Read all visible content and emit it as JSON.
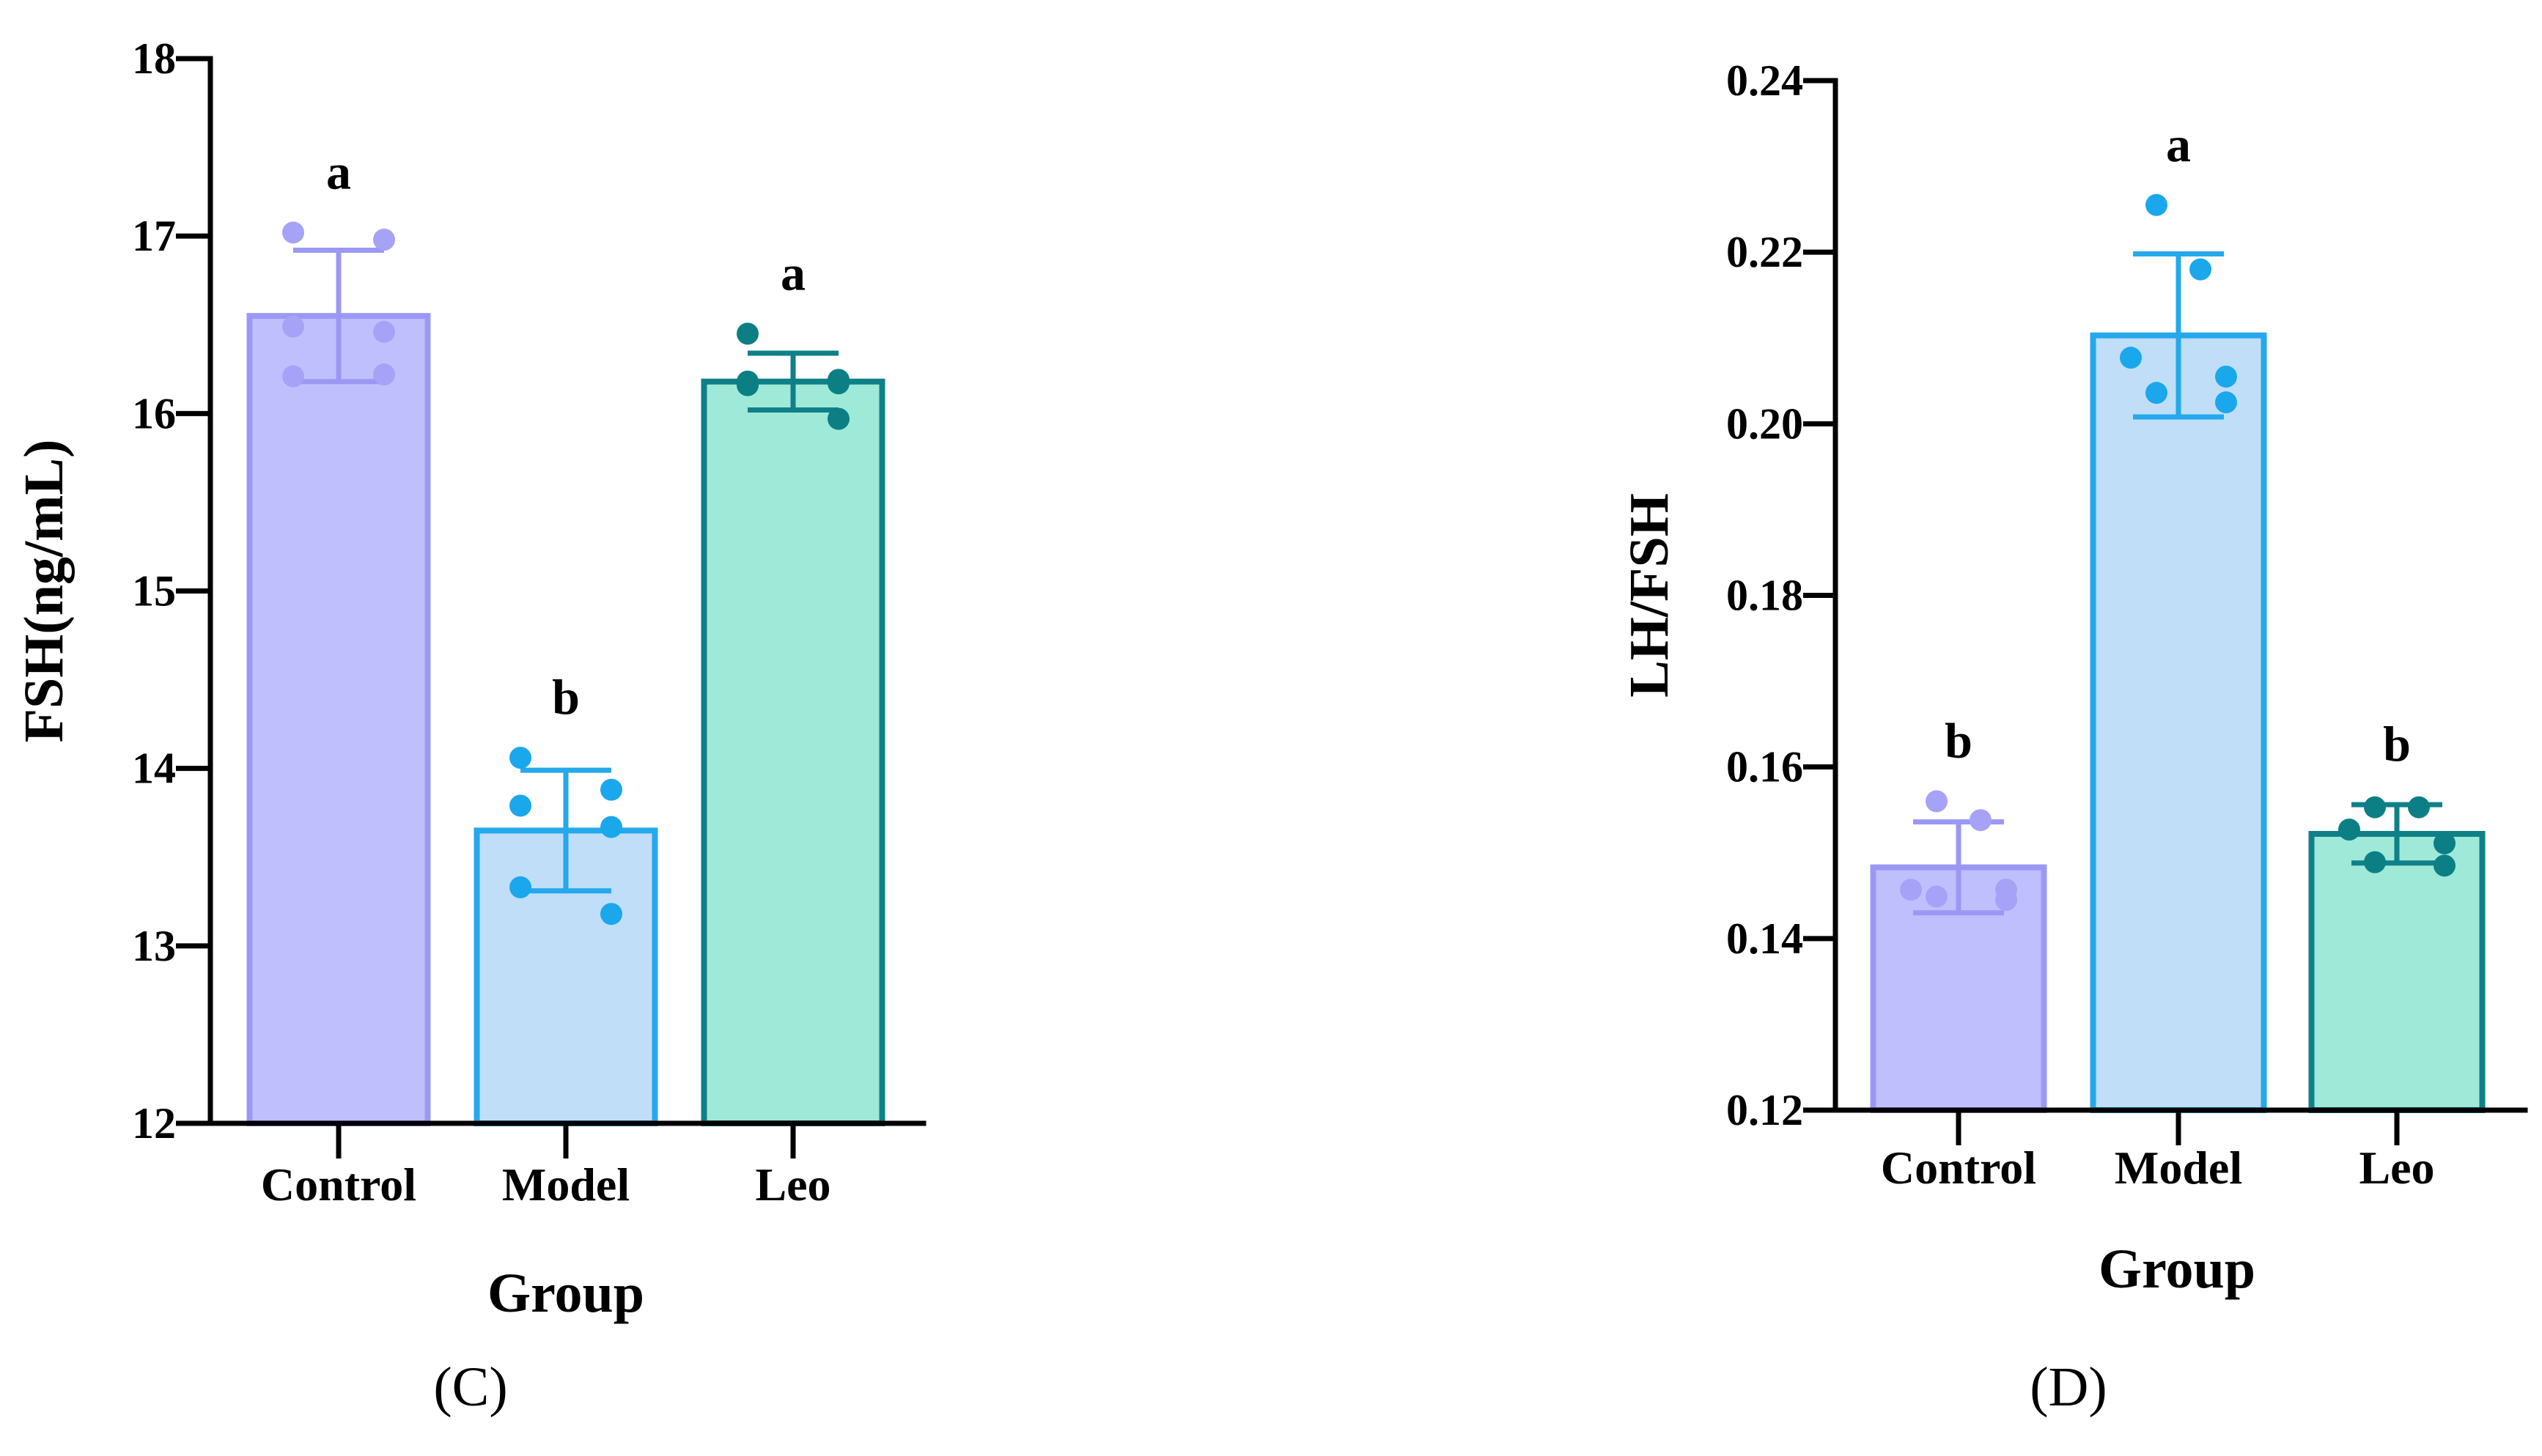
{
  "chart_data": [
    {
      "type": "bar",
      "panel_label": "(C)",
      "title": "",
      "xlabel": "Group",
      "ylabel": "FSH(ng/mL)",
      "ylim": [
        12,
        18
      ],
      "yticks": [
        12,
        13,
        14,
        15,
        16,
        17,
        18
      ],
      "ytick_labels": [
        "12",
        "13",
        "14",
        "15",
        "16",
        "17",
        "18"
      ],
      "categories": [
        "Control",
        "Model",
        "Leo"
      ],
      "values": [
        16.55,
        13.65,
        16.18
      ],
      "errors": [
        0.37,
        0.34,
        0.16
      ],
      "significance": [
        "a",
        "b",
        "a"
      ],
      "points": [
        [
          17.02,
          16.98,
          16.49,
          16.46,
          16.21,
          16.22
        ],
        [
          14.06,
          13.88,
          13.79,
          13.67,
          13.33,
          13.18
        ],
        [
          16.45,
          16.19,
          16.18,
          16.17,
          16.16,
          15.97
        ]
      ],
      "fill_colors": [
        "#c0bffe",
        "#c0def8",
        "#9fe9d8"
      ],
      "edge_colors": [
        "#9b98f5",
        "#25a8ec",
        "#0f8088"
      ],
      "point_colors": [
        "#a6a2f8",
        "#1ba7eb",
        "#0b7f84"
      ]
    },
    {
      "type": "bar",
      "panel_label": "(D)",
      "title": "",
      "xlabel": "Group",
      "ylabel": "LH/FSH",
      "ylim": [
        0.12,
        0.24
      ],
      "yticks": [
        0.12,
        0.14,
        0.16,
        0.18,
        0.2,
        0.22,
        0.24
      ],
      "ytick_labels": [
        "0.12",
        "0.14",
        "0.16",
        "0.18",
        "0.20",
        "0.22",
        "0.24"
      ],
      "categories": [
        "Control",
        "Model",
        "Leo"
      ],
      "values": [
        0.1483,
        0.2103,
        0.1522
      ],
      "errors": [
        0.0053,
        0.0095,
        0.0034
      ],
      "significance": [
        "b",
        "a",
        "b"
      ],
      "points": [
        [
          0.156,
          0.1538,
          0.1457,
          0.1457,
          0.1449,
          0.1445
        ],
        [
          0.2255,
          0.218,
          0.2077,
          0.2055,
          0.2036,
          0.2025
        ],
        [
          0.1553,
          0.1553,
          0.1527,
          0.1511,
          0.1489,
          0.1485
        ]
      ],
      "fill_colors": [
        "#c0bffe",
        "#c0def8",
        "#9fe9d8"
      ],
      "edge_colors": [
        "#9b98f5",
        "#25a8ec",
        "#0f8088"
      ],
      "point_colors": [
        "#a6a2f8",
        "#1ba7eb",
        "#0b7f84"
      ]
    }
  ]
}
